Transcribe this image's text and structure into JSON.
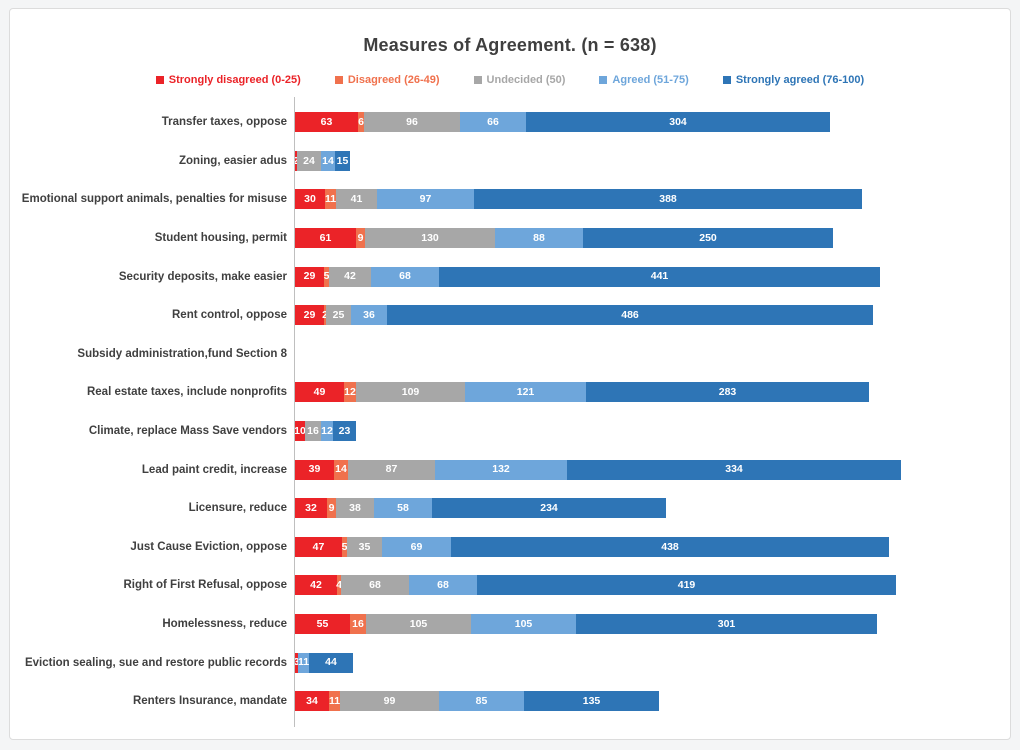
{
  "page": {
    "background_color": "#f4f5f6",
    "panel_color": "#ffffff",
    "title_color": "#3f3f3f",
    "axis_line_color": "#bfbfbf",
    "category_label_color": "#404040"
  },
  "chart_data": {
    "type": "bar",
    "orientation": "horizontal",
    "stacked": true,
    "grid": false,
    "legend_position": "top",
    "title": "Measures of Agreement. (n = 638)",
    "xlabel": "",
    "ylabel": "",
    "xlim": [
      0,
      620
    ],
    "categories": [
      "Transfer taxes, oppose",
      "Zoning, easier adus",
      "Emotional support animals, penalties for misuse",
      "Student housing, permit",
      "Security deposits, make easier",
      "Rent control, oppose",
      "Subsidy administration,fund Section 8",
      "Real estate taxes, include nonprofits",
      "Climate, replace Mass Save vendors",
      "Lead paint credit, increase",
      "Licensure, reduce",
      "Just Cause Eviction, oppose",
      "Right of First Refusal, oppose",
      "Homelessness, reduce",
      "Eviction sealing, sue and restore public records",
      "Renters Insurance, mandate"
    ],
    "series": [
      {
        "name": "Strongly disagreed (0-25)",
        "color": "#EB2328",
        "values": [
          63,
          2,
          30,
          61,
          29,
          29,
          0,
          49,
          10,
          39,
          32,
          47,
          42,
          55,
          3,
          34
        ]
      },
      {
        "name": "Disagreed (26-49)",
        "color": "#F0714D",
        "values": [
          6,
          0,
          11,
          9,
          5,
          2,
          0,
          12,
          0,
          14,
          9,
          5,
          4,
          16,
          0,
          11
        ]
      },
      {
        "name": "Undecided (50)",
        "color": "#A7A7A7",
        "values": [
          96,
          24,
          41,
          130,
          42,
          25,
          0,
          109,
          16,
          87,
          38,
          35,
          68,
          105,
          0,
          99
        ]
      },
      {
        "name": "Agreed (51-75)",
        "color": "#6EA6DB",
        "values": [
          66,
          14,
          97,
          88,
          68,
          36,
          0,
          121,
          12,
          132,
          58,
          69,
          68,
          105,
          11,
          85
        ]
      },
      {
        "name": "Strongly agreed (76-100)",
        "color": "#2E75B6",
        "values": [
          304,
          15,
          388,
          250,
          441,
          486,
          0,
          283,
          23,
          334,
          234,
          438,
          419,
          301,
          44,
          135
        ]
      }
    ]
  }
}
